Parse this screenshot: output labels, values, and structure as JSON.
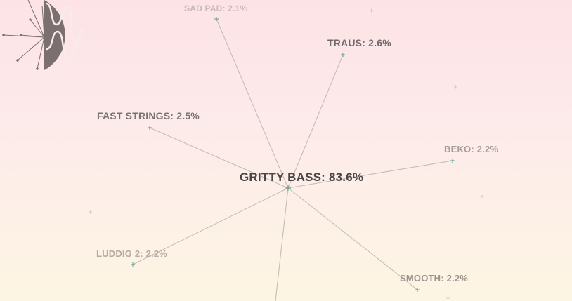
{
  "nodes": {
    "sad_pad": "SAD PAD: 2.1%",
    "traus": "TRAUS: 2.6%",
    "fast_strings": "FAST STRINGS: 2.5%",
    "beko": "BEKO: 2.2%",
    "gritty_bass": "GRITTY BASS: 83.6%",
    "luddig_2": "LUDDIG 2: 2.2%",
    "smooth": "SMOOTH: 2.2%"
  },
  "colors": {
    "edge": "#c4bcbc",
    "marker": "#5aa08d",
    "logo": "#7b6f70"
  },
  "icons": {
    "logo": "waveform-logo-icon",
    "marker": "plus-marker-icon"
  }
}
